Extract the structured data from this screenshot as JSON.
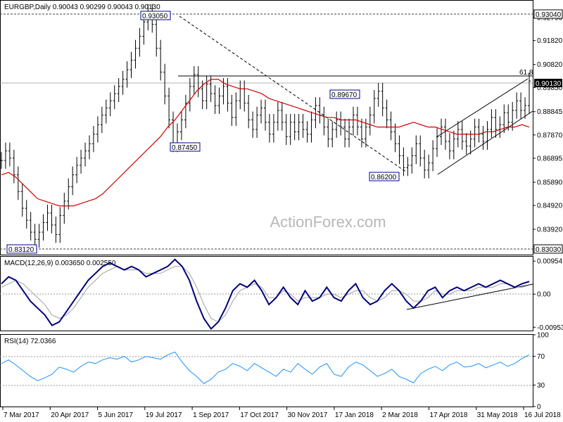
{
  "chart_data": [
    {
      "type": "line",
      "panel": "price",
      "title": "EURGBP,Daily  0.90043 0.90299 0.90043 0.90130",
      "series": [
        {
          "values": [
            0.868,
            0.872,
            0.869,
            0.862,
            0.855,
            0.848,
            0.843,
            0.838,
            0.835,
            0.838,
            0.842,
            0.846,
            0.841,
            0.837,
            0.845,
            0.851,
            0.857,
            0.862,
            0.866,
            0.869,
            0.872,
            0.875,
            0.879,
            0.883,
            0.887,
            0.89,
            0.893,
            0.896,
            0.899,
            0.902,
            0.906,
            0.91,
            0.915,
            0.92,
            0.926,
            0.93,
            0.925,
            0.915,
            0.905,
            0.895,
            0.885,
            0.875,
            0.88,
            0.885,
            0.892,
            0.899,
            0.904,
            0.898,
            0.893,
            0.9,
            0.896,
            0.891,
            0.895,
            0.899,
            0.892,
            0.886,
            0.893,
            0.898,
            0.892,
            0.885,
            0.881,
            0.887,
            0.89,
            0.884,
            0.879,
            0.884,
            0.889,
            0.884,
            0.878,
            0.884,
            0.88,
            0.884,
            0.881,
            0.879,
            0.885,
            0.891,
            0.887,
            0.882,
            0.877,
            0.881,
            0.885,
            0.882,
            0.877,
            0.882,
            0.887,
            0.882,
            0.877,
            0.882,
            0.887,
            0.894,
            0.897,
            0.89,
            0.885,
            0.88,
            0.875,
            0.87,
            0.865,
            0.866,
            0.87,
            0.875,
            0.869,
            0.864,
            0.867,
            0.873,
            0.878,
            0.882,
            0.876,
            0.872,
            0.877,
            0.881,
            0.876,
            0.874,
            0.877,
            0.882,
            0.879,
            0.876,
            0.881,
            0.886,
            0.881,
            0.883,
            0.888,
            0.884,
            0.889,
            0.893,
            0.889,
            0.891,
            0.9013
          ]
        },
        {
          "values": [
            0.862,
            0.863,
            0.861,
            0.858,
            0.855,
            0.852,
            0.851,
            0.85,
            0.849,
            0.849,
            0.849,
            0.85,
            0.851,
            0.852,
            0.854,
            0.857,
            0.86,
            0.863,
            0.866,
            0.869,
            0.872,
            0.875,
            0.878,
            0.882,
            0.885,
            0.889,
            0.893,
            0.897,
            0.9,
            0.902,
            0.902,
            0.9,
            0.899,
            0.898,
            0.898,
            0.897,
            0.896,
            0.894,
            0.893,
            0.892,
            0.891,
            0.89,
            0.889,
            0.888,
            0.887,
            0.886,
            0.886,
            0.885,
            0.885,
            0.885,
            0.884,
            0.883,
            0.882,
            0.882,
            0.882,
            0.882,
            0.883,
            0.884,
            0.883,
            0.882,
            0.882,
            0.881,
            0.88,
            0.879,
            0.879,
            0.879,
            0.879,
            0.88,
            0.88,
            0.881,
            0.882,
            0.882,
            0.883,
            0.882
          ]
        }
      ],
      "ylim": [
        0.8286,
        0.9349
      ],
      "y_ticks": [
        "0.92790",
        "0.91820",
        "0.90820",
        "0.89850",
        "0.88845",
        "0.87870",
        "0.86895",
        "0.85890",
        "0.84920",
        "0.83920"
      ],
      "right_labels": [
        "0.93040",
        "0.90130",
        "0.83030"
      ],
      "annotations": [
        "0.93050",
        "0.87450",
        "0.89670",
        "0.86200",
        "0.83120",
        "61.8"
      ],
      "x_labels": [
        "7 Mar 2017",
        "20 Apr 2017",
        "5 Jun 2017",
        "19 Jul 2017",
        "1 Sep 2017",
        "17 Oct 2017",
        "30 Nov 2017",
        "17 Jan 2018",
        "2 Mar 2018",
        "17 Apr 2018",
        "31 May 2018",
        "16 Jul 2018"
      ],
      "watermark": "ActionForex.com"
    },
    {
      "type": "line",
      "panel": "macd",
      "title": "MACD(12,26,9) 0.003650 0.002550",
      "series": [
        {
          "values": [
            0.003,
            0.005,
            0.004,
            0.001,
            -0.002,
            -0.004,
            -0.006,
            -0.009,
            -0.008,
            -0.005,
            -0.002,
            0.001,
            0.004,
            0.006,
            0.008,
            0.009,
            0.008,
            0.007,
            0.008,
            0.007,
            0.005,
            0.006,
            0.007,
            0.008,
            0.01,
            0.008,
            0.004,
            -0.002,
            -0.007,
            -0.01,
            -0.008,
            -0.004,
            0.001,
            0.003,
            0.002,
            0.004,
            0.001,
            -0.003,
            -0.001,
            0.002,
            -0.001,
            -0.003,
            0.001,
            -0.002,
            -0.001,
            0.002,
            -0.001,
            -0.002,
            0.001,
            0.003,
            -0.001,
            -0.003,
            -0.002,
            0.001,
            0.003,
            0.001,
            -0.002,
            -0.004,
            -0.002,
            0.001,
            0.002,
            -0.001,
            0.001,
            0.002,
            0.001,
            0.002,
            0.003,
            0.002,
            0.003,
            0.004,
            0.003,
            0.002,
            0.003,
            0.00365
          ]
        },
        {
          "values": [
            0.002,
            0.003,
            0.004,
            0.003,
            0.001,
            -0.001,
            -0.003,
            -0.006,
            -0.007,
            -0.006,
            -0.004,
            -0.001,
            0.002,
            0.004,
            0.006,
            0.007,
            0.008,
            0.007,
            0.007,
            0.007,
            0.006,
            0.006,
            0.006,
            0.007,
            0.008,
            0.008,
            0.006,
            0.002,
            -0.003,
            -0.007,
            -0.008,
            -0.006,
            -0.002,
            0.001,
            0.002,
            0.003,
            0.002,
            -0.001,
            -0.001,
            0.001,
            0.0,
            -0.002,
            -0.001,
            -0.001,
            -0.001,
            0.0,
            0.0,
            -0.001,
            0.0,
            0.001,
            0.001,
            -0.001,
            -0.002,
            -0.001,
            0.001,
            0.001,
            0.0,
            -0.002,
            -0.002,
            -0.001,
            0.001,
            0.0,
            0.0,
            0.001,
            0.001,
            0.001,
            0.002,
            0.002,
            0.002,
            0.003,
            0.003,
            0.002,
            0.002,
            0.00255
          ]
        }
      ],
      "ylim": [
        -0.0105,
        0.0108
      ],
      "y_ticks": [
        "0.00954",
        "0.00",
        "-0.009538"
      ]
    },
    {
      "type": "line",
      "panel": "rsi",
      "title": "RSI(14) 72.0366",
      "series": [
        {
          "values": [
            60,
            65,
            58,
            50,
            42,
            36,
            40,
            45,
            55,
            52,
            48,
            56,
            62,
            60,
            65,
            68,
            66,
            70,
            62,
            65,
            70,
            68,
            66,
            72,
            76,
            62,
            50,
            42,
            32,
            38,
            48,
            52,
            60,
            56,
            50,
            60,
            54,
            48,
            42,
            52,
            48,
            60,
            52,
            45,
            55,
            60,
            45,
            42,
            55,
            62,
            58,
            50,
            42,
            46,
            52,
            42,
            38,
            33,
            46,
            52,
            56,
            50,
            58,
            62,
            55,
            56,
            60,
            54,
            58,
            62,
            56,
            60,
            67,
            72
          ]
        }
      ],
      "ylim": [
        0,
        100
      ],
      "y_ticks": [
        "100",
        "70",
        "30",
        "0"
      ]
    }
  ]
}
